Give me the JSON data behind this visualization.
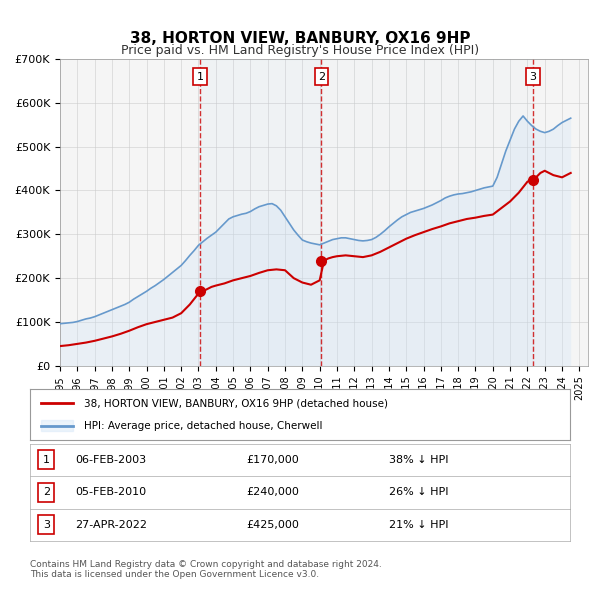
{
  "title": "38, HORTON VIEW, BANBURY, OX16 9HP",
  "subtitle": "Price paid vs. HM Land Registry's House Price Index (HPI)",
  "legend_entry1": "38, HORTON VIEW, BANBURY, OX16 9HP (detached house)",
  "legend_entry2": "HPI: Average price, detached house, Cherwell",
  "red_line_color": "#cc0000",
  "blue_line_color": "#6699cc",
  "blue_fill_color": "#d0e4f7",
  "sale_color": "#cc0000",
  "dashed_line_color": "#cc0000",
  "grid_color": "#cccccc",
  "background_color": "#ffffff",
  "plot_bg_color": "#f5f5f5",
  "shaded_region_color": "#ddeeff",
  "ylabel": "",
  "ylim": [
    0,
    700000
  ],
  "yticks": [
    0,
    100000,
    200000,
    300000,
    400000,
    500000,
    600000,
    700000
  ],
  "ytick_labels": [
    "£0",
    "£100K",
    "£200K",
    "£300K",
    "£400K",
    "£500K",
    "£600K",
    "£700K"
  ],
  "xlim_start": 1995.0,
  "xlim_end": 2025.5,
  "sale_dates": [
    "2003-02-06",
    "2010-02-05",
    "2022-04-27"
  ],
  "sale_prices": [
    170000,
    240000,
    425000
  ],
  "sale_labels": [
    "1",
    "2",
    "3"
  ],
  "sale_label_dates_year": [
    2003.1,
    2010.1,
    2022.33
  ],
  "annotation_rows": [
    {
      "num": "1",
      "date": "06-FEB-2003",
      "price": "£170,000",
      "hpi": "38% ↓ HPI"
    },
    {
      "num": "2",
      "date": "05-FEB-2010",
      "price": "£240,000",
      "hpi": "26% ↓ HPI"
    },
    {
      "num": "3",
      "date": "27-APR-2022",
      "price": "£425,000",
      "hpi": "21% ↓ HPI"
    }
  ],
  "footer_line1": "Contains HM Land Registry data © Crown copyright and database right 2024.",
  "footer_line2": "This data is licensed under the Open Government Licence v3.0.",
  "hpi_data_years": [
    1995,
    1995.25,
    1995.5,
    1995.75,
    1996,
    1996.25,
    1996.5,
    1996.75,
    1997,
    1997.25,
    1997.5,
    1997.75,
    1998,
    1998.25,
    1998.5,
    1998.75,
    1999,
    1999.25,
    1999.5,
    1999.75,
    2000,
    2000.25,
    2000.5,
    2000.75,
    2001,
    2001.25,
    2001.5,
    2001.75,
    2002,
    2002.25,
    2002.5,
    2002.75,
    2003,
    2003.25,
    2003.5,
    2003.75,
    2004,
    2004.25,
    2004.5,
    2004.75,
    2005,
    2005.25,
    2005.5,
    2005.75,
    2006,
    2006.25,
    2006.5,
    2006.75,
    2007,
    2007.25,
    2007.5,
    2007.75,
    2008,
    2008.25,
    2008.5,
    2008.75,
    2009,
    2009.25,
    2009.5,
    2009.75,
    2010,
    2010.25,
    2010.5,
    2010.75,
    2011,
    2011.25,
    2011.5,
    2011.75,
    2012,
    2012.25,
    2012.5,
    2012.75,
    2013,
    2013.25,
    2013.5,
    2013.75,
    2014,
    2014.25,
    2014.5,
    2014.75,
    2015,
    2015.25,
    2015.5,
    2015.75,
    2016,
    2016.25,
    2016.5,
    2016.75,
    2017,
    2017.25,
    2017.5,
    2017.75,
    2018,
    2018.25,
    2018.5,
    2018.75,
    2019,
    2019.25,
    2019.5,
    2019.75,
    2020,
    2020.25,
    2020.5,
    2020.75,
    2021,
    2021.25,
    2021.5,
    2021.75,
    2022,
    2022.25,
    2022.5,
    2022.75,
    2023,
    2023.25,
    2023.5,
    2023.75,
    2024,
    2024.25,
    2024.5
  ],
  "hpi_data_values": [
    96000,
    97000,
    98000,
    99000,
    101000,
    104000,
    107000,
    109000,
    112000,
    116000,
    120000,
    124000,
    128000,
    132000,
    136000,
    140000,
    145000,
    152000,
    158000,
    164000,
    170000,
    177000,
    183000,
    190000,
    197000,
    205000,
    213000,
    221000,
    229000,
    240000,
    252000,
    263000,
    275000,
    283000,
    291000,
    298000,
    305000,
    315000,
    325000,
    335000,
    340000,
    343000,
    346000,
    348000,
    352000,
    358000,
    363000,
    366000,
    369000,
    370000,
    365000,
    355000,
    340000,
    325000,
    310000,
    298000,
    287000,
    283000,
    280000,
    278000,
    276000,
    280000,
    284000,
    288000,
    290000,
    292000,
    292000,
    290000,
    288000,
    286000,
    285000,
    286000,
    288000,
    293000,
    300000,
    308000,
    317000,
    325000,
    333000,
    340000,
    345000,
    350000,
    353000,
    356000,
    359000,
    363000,
    367000,
    372000,
    377000,
    383000,
    387000,
    390000,
    392000,
    393000,
    395000,
    397000,
    400000,
    403000,
    406000,
    408000,
    410000,
    430000,
    460000,
    490000,
    515000,
    540000,
    558000,
    570000,
    558000,
    548000,
    540000,
    535000,
    532000,
    535000,
    540000,
    548000,
    555000,
    560000,
    565000
  ],
  "red_data_years": [
    1995,
    1995.5,
    1996,
    1996.5,
    1997,
    1997.5,
    1998,
    1998.5,
    1999,
    1999.5,
    2000,
    2000.5,
    2001,
    2001.5,
    2002,
    2002.5,
    2003,
    2003.25,
    2003.5,
    2003.75,
    2004,
    2004.5,
    2005,
    2005.5,
    2006,
    2006.5,
    2007,
    2007.5,
    2008,
    2008.5,
    2009,
    2009.5,
    2010,
    2010.25,
    2010.5,
    2010.75,
    2011,
    2011.5,
    2012,
    2012.5,
    2013,
    2013.5,
    2014,
    2014.5,
    2015,
    2015.5,
    2016,
    2016.5,
    2017,
    2017.5,
    2018,
    2018.5,
    2019,
    2019.5,
    2020,
    2020.5,
    2021,
    2021.5,
    2022,
    2022.25,
    2022.5,
    2022.75,
    2023,
    2023.5,
    2024,
    2024.5
  ],
  "red_data_values": [
    45000,
    47000,
    50000,
    53000,
    57000,
    62000,
    67000,
    73000,
    80000,
    88000,
    95000,
    100000,
    105000,
    110000,
    120000,
    140000,
    165000,
    170000,
    175000,
    180000,
    183000,
    188000,
    195000,
    200000,
    205000,
    212000,
    218000,
    220000,
    218000,
    200000,
    190000,
    185000,
    195000,
    240000,
    245000,
    248000,
    250000,
    252000,
    250000,
    248000,
    252000,
    260000,
    270000,
    280000,
    290000,
    298000,
    305000,
    312000,
    318000,
    325000,
    330000,
    335000,
    338000,
    342000,
    345000,
    360000,
    375000,
    395000,
    420000,
    425000,
    430000,
    440000,
    445000,
    435000,
    430000,
    440000
  ]
}
